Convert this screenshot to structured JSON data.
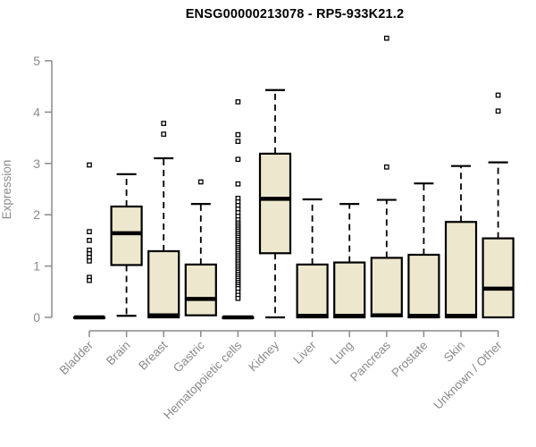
{
  "chart_data": {
    "type": "boxplot",
    "title": "ENSG00000213078 - RP5-933K21.2",
    "ylabel": "Expression",
    "xlabel": "",
    "ylim": [
      0,
      5
    ],
    "yticks": [
      0,
      1,
      2,
      3,
      4,
      5
    ],
    "grid": false,
    "legend": "none",
    "categories": [
      "Bladder",
      "Brain",
      "Breast",
      "Gastric",
      "Hematopoietic cells",
      "Kidney",
      "Liver",
      "Lung",
      "Pancreas",
      "Prostate",
      "Skin",
      "Unknown / Other"
    ],
    "boxes": [
      {
        "category": "Bladder",
        "low": 0,
        "q1": 0,
        "median": 0,
        "q3": 0,
        "high": 0,
        "outliers": [
          2.97,
          1.67,
          1.5,
          1.31,
          1.24,
          1.17,
          1.1,
          0.78,
          0.72
        ]
      },
      {
        "category": "Brain",
        "low": 0.03,
        "q1": 1.02,
        "median": 1.64,
        "q3": 2.16,
        "high": 2.79,
        "outliers": []
      },
      {
        "category": "Breast",
        "low": 0,
        "q1": 0,
        "median": 0.04,
        "q3": 1.29,
        "high": 3.1,
        "outliers": [
          3.78,
          3.57
        ]
      },
      {
        "category": "Gastric",
        "low": 0.04,
        "q1": 0.04,
        "median": 0.36,
        "q3": 1.03,
        "high": 2.21,
        "outliers": [
          2.64
        ]
      },
      {
        "category": "Hematopoietic cells",
        "low": 0,
        "q1": 0,
        "median": 0,
        "q3": 0,
        "high": 0,
        "outliers": [
          4.2,
          3.56,
          3.43,
          3.08,
          2.6,
          2.32,
          2.25,
          2.18,
          2.11,
          2.04,
          1.97,
          1.9,
          1.84,
          1.8,
          1.76,
          1.72,
          1.68,
          1.64,
          1.6,
          1.56,
          1.52,
          1.48,
          1.44,
          1.4,
          1.36,
          1.32,
          1.28,
          1.24,
          1.2,
          1.16,
          1.12,
          1.08,
          1.04,
          1.0,
          0.96,
          0.92,
          0.88,
          0.84,
          0.8,
          0.76,
          0.72,
          0.68,
          0.64,
          0.6,
          0.56,
          0.49,
          0.43,
          0.37
        ]
      },
      {
        "category": "Kidney",
        "low": 0,
        "q1": 1.25,
        "median": 2.31,
        "q3": 3.19,
        "high": 4.43,
        "outliers": []
      },
      {
        "category": "Liver",
        "low": 0,
        "q1": 0,
        "median": 0.03,
        "q3": 1.03,
        "high": 2.3,
        "outliers": []
      },
      {
        "category": "Lung",
        "low": 0,
        "q1": 0,
        "median": 0.03,
        "q3": 1.07,
        "high": 2.21,
        "outliers": []
      },
      {
        "category": "Pancreas",
        "low": 0.02,
        "q1": 0.02,
        "median": 0.04,
        "q3": 1.16,
        "high": 2.29,
        "outliers": [
          5.44,
          2.93
        ]
      },
      {
        "category": "Prostate",
        "low": 0,
        "q1": 0,
        "median": 0.03,
        "q3": 1.22,
        "high": 2.61,
        "outliers": []
      },
      {
        "category": "Skin",
        "low": 0,
        "q1": 0,
        "median": 0.03,
        "q3": 1.86,
        "high": 2.95,
        "outliers": []
      },
      {
        "category": "Unknown / Other",
        "low": 0,
        "q1": 0,
        "median": 0.56,
        "q3": 1.54,
        "high": 3.02,
        "outliers": [
          4.33,
          4.02
        ]
      }
    ],
    "colors": {
      "box_fill": "#EDE7CE",
      "box_border": "#000000",
      "median": "#000000",
      "whisker": "#000000",
      "outlier_fill": "#FFFFFF",
      "axis": "#8A8A8A",
      "title": "#000000"
    }
  }
}
